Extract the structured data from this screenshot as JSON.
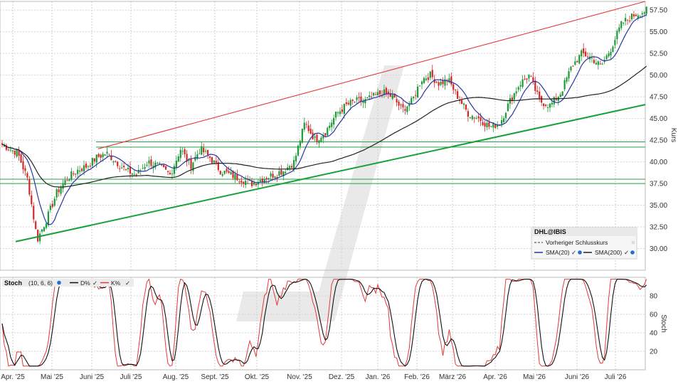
{
  "chart_data": [
    {
      "type": "candlestick",
      "symbol": "DHL@IBIS",
      "ylabel": "Kurs",
      "ylim": [
        27.5,
        58.5
      ],
      "yticks": [
        30.0,
        32.5,
        35.0,
        37.5,
        40.0,
        42.5,
        45.0,
        47.5,
        50.0,
        52.5,
        55.0,
        57.5
      ],
      "x_months": [
        "Apr. '25",
        "Mai '25",
        "Juni '25",
        "Juli '25",
        "Aug. '25",
        "Sept. '25",
        "Okt. '25",
        "Nov. '25",
        "Dez. '25",
        "Jan. '26",
        "Feb. '26",
        "März '26",
        "Apr. '26",
        "Mai '26",
        "Juni '26",
        "Juli '26"
      ],
      "grid": true,
      "legend_position": "bottom-right",
      "legend": {
        "title": "DHL@IBIS",
        "items": [
          "Vorheriger Schlusskurs",
          "SMA(20)",
          "SMA(200)"
        ]
      },
      "close_anchors": [
        [
          "Apr. '25",
          41.0
        ],
        [
          "Apr. '25",
          38.0
        ],
        [
          "Apr. '25",
          31.0
        ],
        [
          "Apr. '25",
          33.5
        ],
        [
          "Mai '25",
          36.5
        ],
        [
          "Mai '25",
          38.0
        ],
        [
          "Mai '25",
          39.0
        ],
        [
          "Mai '25",
          39.5
        ],
        [
          "Juni '25",
          40.5
        ],
        [
          "Juni '25",
          41.0
        ],
        [
          "Juni '25",
          40.0
        ],
        [
          "Juni '25",
          39.0
        ],
        [
          "Juli '25",
          38.5
        ],
        [
          "Juli '25",
          40.0
        ],
        [
          "Juli '25",
          39.5
        ],
        [
          "Juli '25",
          38.5
        ],
        [
          "Aug. '25",
          41.5
        ],
        [
          "Aug. '25",
          39.5
        ],
        [
          "Aug. '25",
          41.5
        ],
        [
          "Aug. '25",
          40.5
        ],
        [
          "Sept. '25",
          39.0
        ],
        [
          "Sept. '25",
          38.5
        ],
        [
          "Sept. '25",
          38.0
        ],
        [
          "Sept. '25",
          37.5
        ],
        [
          "Okt. '25",
          38.0
        ],
        [
          "Okt. '25",
          38.5
        ],
        [
          "Okt. '25",
          39.0
        ],
        [
          "Okt. '25",
          40.0
        ],
        [
          "Nov. '25",
          44.5
        ],
        [
          "Nov. '25",
          42.5
        ],
        [
          "Nov. '25",
          43.5
        ],
        [
          "Nov. '25",
          45.5
        ],
        [
          "Dez. '25",
          46.5
        ],
        [
          "Dez. '25",
          47.0
        ],
        [
          "Dez. '25",
          47.0
        ],
        [
          "Dez. '25",
          47.5
        ],
        [
          "Jan. '26",
          48.0
        ],
        [
          "Jan. '26",
          47.5
        ],
        [
          "Jan. '26",
          46.0
        ],
        [
          "Jan. '26",
          47.0
        ],
        [
          "Feb. '26",
          49.5
        ],
        [
          "Feb. '26",
          50.0
        ],
        [
          "Feb. '26",
          49.0
        ],
        [
          "Feb. '26",
          49.5
        ],
        [
          "März '26",
          47.5
        ],
        [
          "März '26",
          45.5
        ],
        [
          "März '26",
          45.0
        ],
        [
          "März '26",
          44.0
        ],
        [
          "Apr. '26",
          44.5
        ],
        [
          "Apr. '26",
          47.0
        ],
        [
          "Apr. '26",
          49.0
        ],
        [
          "Apr. '26",
          50.0
        ],
        [
          "Mai '26",
          47.0
        ],
        [
          "Mai '26",
          46.5
        ],
        [
          "Mai '26",
          48.0
        ],
        [
          "Mai '26",
          51.0
        ],
        [
          "Juni '26",
          52.5
        ],
        [
          "Juni '26",
          52.0
        ],
        [
          "Juni '26",
          51.0
        ],
        [
          "Juni '26",
          53.0
        ],
        [
          "Juli '26",
          56.0
        ],
        [
          "Juli '26",
          57.0
        ],
        [
          "Juli '26",
          57.5
        ]
      ],
      "trendlines": [
        {
          "name": "upper-channel",
          "color": "#e23a3a",
          "from": [
            "Juni '25",
            41.5
          ],
          "to": [
            "Juli '26",
            58.5
          ]
        },
        {
          "name": "lower-support",
          "color": "#18a03a",
          "from": [
            "Apr. '25",
            30.8
          ],
          "to": [
            "Juli '26",
            46.6
          ]
        }
      ],
      "horizontal_levels": [
        42.3,
        41.7,
        38.0,
        37.5
      ],
      "series": [
        {
          "name": "SMA(20)",
          "color": "#2a35a5"
        },
        {
          "name": "SMA(200)",
          "color": "#222222"
        }
      ]
    },
    {
      "type": "line",
      "title": "Stoch",
      "params": "(10, 6, 6)",
      "ylabel": "Stoch",
      "ylim": [
        0,
        100
      ],
      "yticks": [
        20,
        40,
        60,
        80
      ],
      "legend_position": "top-left",
      "series": [
        {
          "name": "D%",
          "color": "#111111"
        },
        {
          "name": "K%",
          "color": "#e23a3a"
        }
      ]
    }
  ]
}
